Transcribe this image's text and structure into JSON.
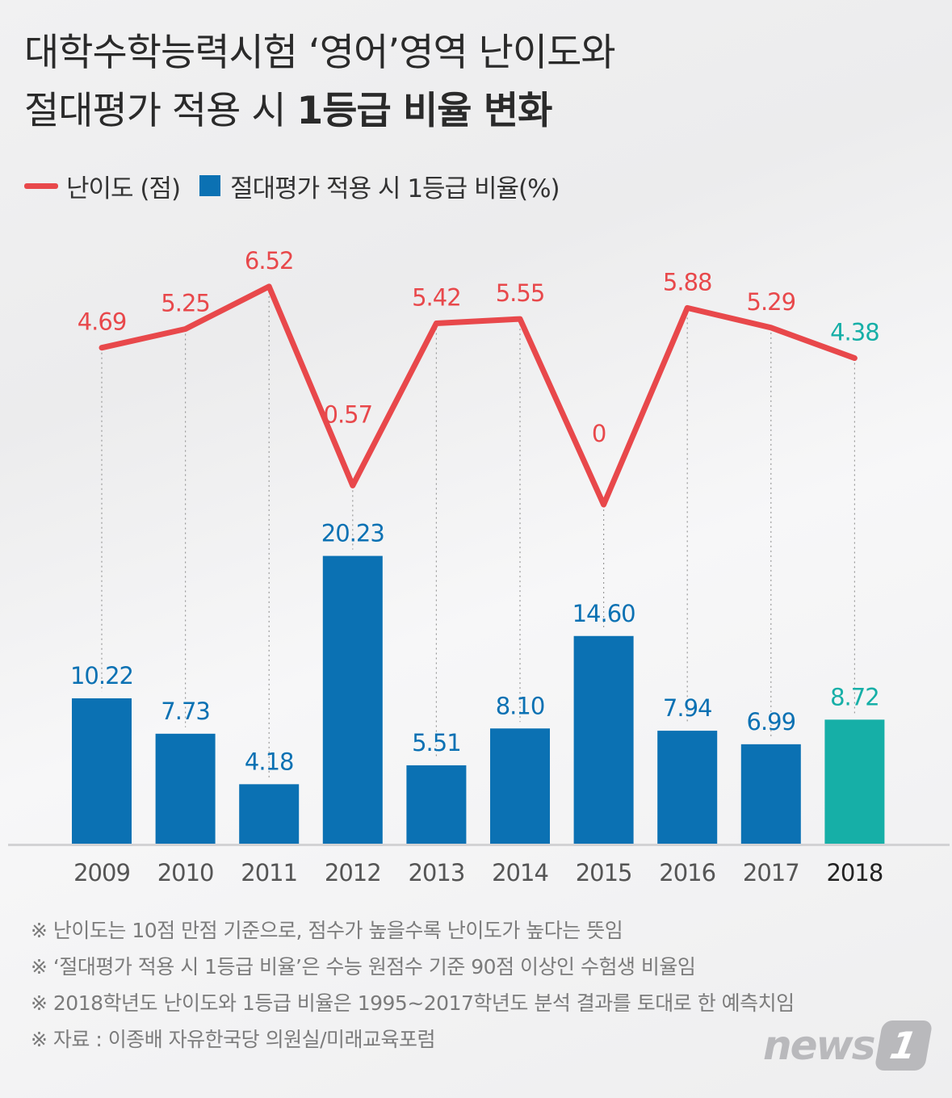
{
  "title": {
    "line1": "대학수학능력시험 ‘영어’영역 난이도와",
    "line2_normal": "절대평가 적용 시 ",
    "line2_bold": "1등급 비율 변화"
  },
  "legend": {
    "line_label": "난이도 (점)",
    "bar_label": "절대평가 적용 시 1등급 비율(%)"
  },
  "colors": {
    "line": "#e8484b",
    "bar": "#0b71b3",
    "highlight": "#16afa7",
    "bar_label": "#0b71b3",
    "line_label": "#e8484b",
    "axis_text": "#555555"
  },
  "chart_data": {
    "type": "bar",
    "categories": [
      "2009",
      "2010",
      "2011",
      "2012",
      "2013",
      "2014",
      "2015",
      "2016",
      "2017",
      "2018"
    ],
    "series": [
      {
        "name": "절대평가 적용 시 1등급 비율(%)",
        "type": "bar",
        "values": [
          10.22,
          7.73,
          4.18,
          20.23,
          5.51,
          8.1,
          14.6,
          7.94,
          6.99,
          8.72
        ],
        "labels": [
          "10.22",
          "7.73",
          "4.18",
          "20.23",
          "5.51",
          "8.10",
          "14.60",
          "7.94",
          "6.99",
          "8.72"
        ]
      },
      {
        "name": "난이도 (점)",
        "type": "line",
        "values": [
          4.69,
          5.25,
          6.52,
          0.57,
          5.42,
          5.55,
          0,
          5.88,
          5.29,
          4.38
        ],
        "labels": [
          "4.69",
          "5.25",
          "6.52",
          "0.57",
          "5.42",
          "5.55",
          "0",
          "5.88",
          "5.29",
          "4.38"
        ]
      }
    ],
    "highlight_category": "2018",
    "title": "대학수학능력시험 ‘영어’영역 난이도와 절대평가 적용 시 1등급 비율 변화",
    "xlabel": "",
    "ylabel": "",
    "ylim_bar": [
      0,
      21
    ],
    "ylim_line": [
      0,
      7
    ]
  },
  "notes": [
    "※ 난이도는 10점 만점 기준으로, 점수가 높을수록 난이도가 높다는 뜻임",
    "※ ‘절대평가 적용 시 1등급 비율’은 수능 원점수 기준 90점 이상인 수험생 비율임",
    "※ 2018학년도 난이도와 1등급 비율은 1995~2017학년도 분석 결과를 토대로 한 예측치임",
    "※ 자료 : 이종배 자유한국당 의원실/미래교육포럼"
  ],
  "logo": {
    "text": "news",
    "mark": "1"
  }
}
